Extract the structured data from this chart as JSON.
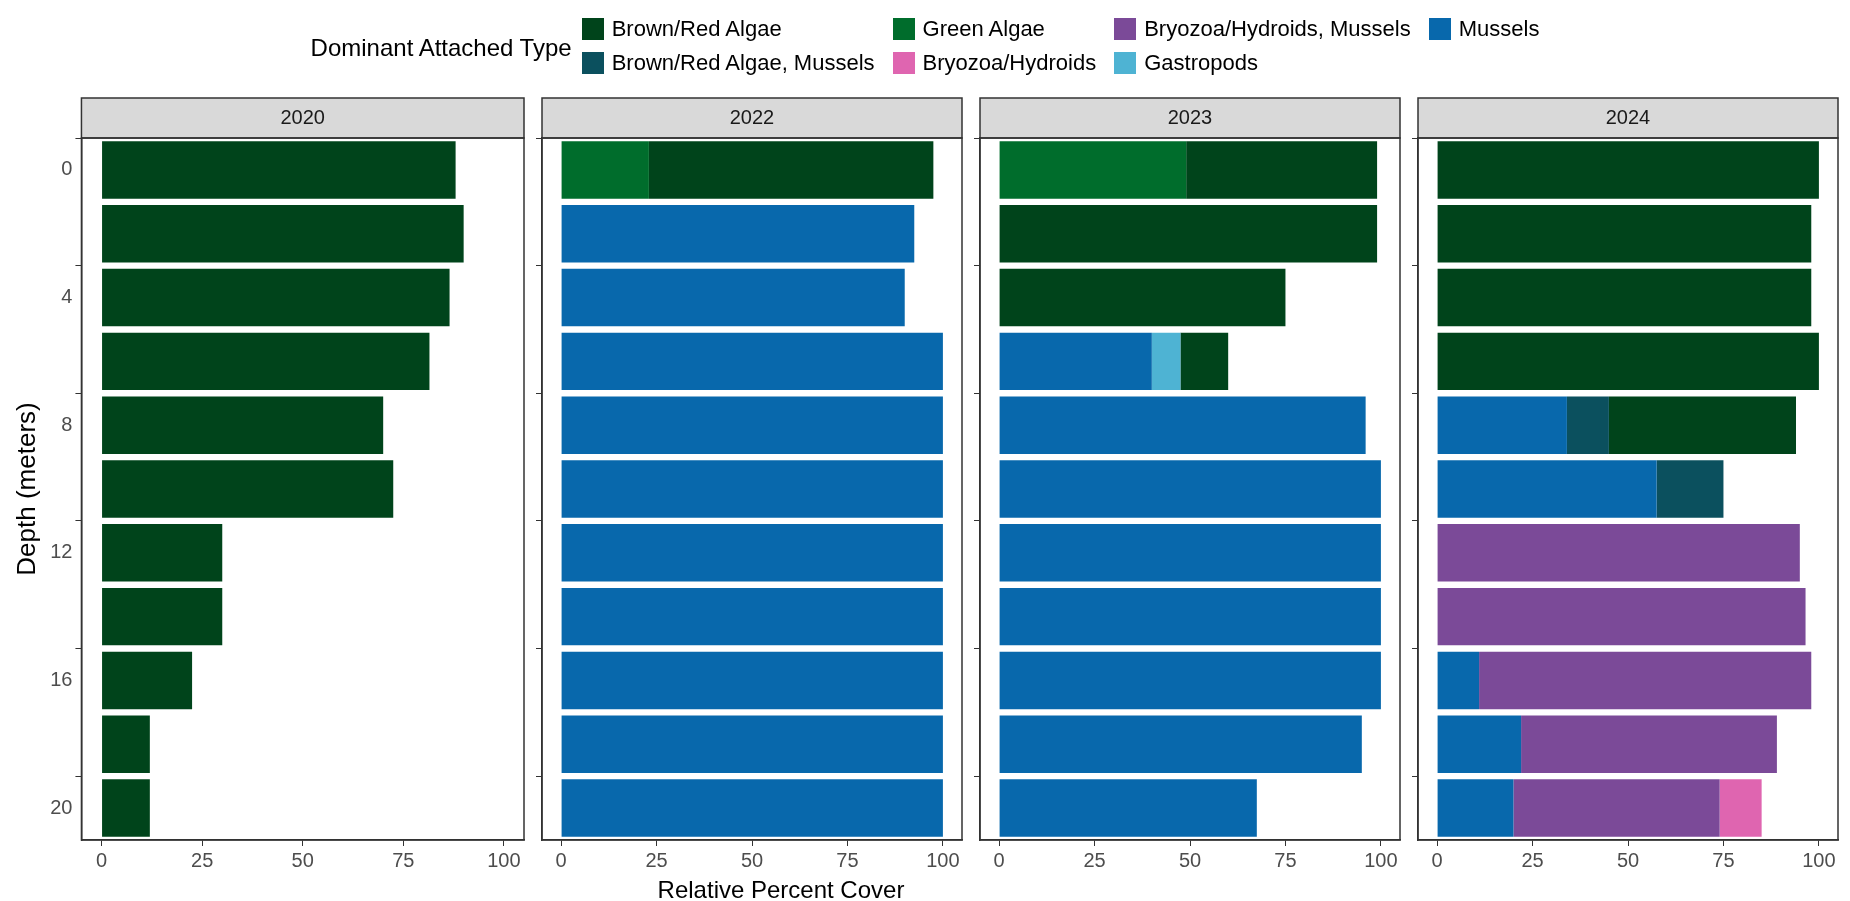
{
  "chart_data": [
    {
      "type": "bar",
      "title": "2020",
      "orientation": "horizontal",
      "stacked": true,
      "categories": [
        "0",
        null,
        "4",
        null,
        "8",
        null,
        "12",
        null,
        "16",
        null,
        "20"
      ],
      "xlim": [
        -5,
        105
      ],
      "xticks": [
        0,
        25,
        50,
        75,
        100
      ],
      "ylabel": "Depth (meters)",
      "legend": "top",
      "legend_title": "Dominant Attached Type",
      "series": [
        {
          "name": "Mussels",
          "color": "#0868ac",
          "values": [
            null,
            null,
            null,
            null,
            null,
            null,
            null,
            null,
            null,
            null,
            null
          ]
        },
        {
          "name": "Gastropods",
          "color": "#4eb3d3",
          "values": [
            null,
            null,
            null,
            null,
            null,
            null,
            null,
            null,
            null,
            null,
            null
          ]
        },
        {
          "name": "Bryozoa/Hydroids, Mussels",
          "color": "#7b4a98",
          "values": [
            null,
            null,
            null,
            null,
            null,
            null,
            null,
            null,
            null,
            null,
            null
          ]
        },
        {
          "name": "Bryozoa/Hydroids",
          "color": "#df65b0",
          "values": [
            null,
            null,
            null,
            null,
            null,
            null,
            null,
            null,
            null,
            null,
            null
          ]
        },
        {
          "name": "Green Algae",
          "color": "#006d2c",
          "values": [
            null,
            null,
            null,
            null,
            null,
            null,
            null,
            null,
            null,
            null,
            null
          ]
        },
        {
          "name": "Brown/Red Algae, Mussels",
          "color": "#0b505e",
          "values": [
            null,
            null,
            null,
            null,
            null,
            null,
            null,
            null,
            null,
            null,
            null
          ]
        },
        {
          "name": "Brown/Red Algae",
          "color": "#00441b",
          "values": [
            88,
            90,
            86.5,
            81.5,
            70,
            72.5,
            30,
            30,
            22.5,
            12,
            12
          ]
        }
      ]
    },
    {
      "type": "bar",
      "title": "2022",
      "orientation": "horizontal",
      "stacked": true,
      "categories": [
        "0",
        null,
        "4",
        null,
        "8",
        null,
        "12",
        null,
        "16",
        null,
        "20"
      ],
      "xlim": [
        -5,
        105
      ],
      "xticks": [
        0,
        25,
        50,
        75,
        100
      ],
      "tick_labels": "x",
      "xlabel": "Relative Percent Cover",
      "series": [
        {
          "color": "#0868ac",
          "values": [
            null,
            92.5,
            90,
            100,
            100,
            100,
            100,
            100,
            100,
            100,
            100
          ]
        },
        {
          "color": "#006d2c",
          "values": [
            23,
            null,
            null,
            null,
            null,
            null,
            null,
            null,
            null,
            null,
            null
          ]
        },
        {
          "color": "#00441b",
          "values": [
            74.5,
            null,
            null,
            null,
            null,
            null,
            null,
            null,
            null,
            null,
            null
          ]
        }
      ]
    },
    {
      "type": "bar",
      "title": "2023",
      "orientation": "horizontal",
      "stacked": true,
      "categories": [
        "0",
        null,
        "4",
        null,
        "8",
        null,
        "12",
        null,
        "16",
        null,
        "20"
      ],
      "xlim": [
        -5,
        105
      ],
      "xticks": [
        0,
        25,
        50,
        75,
        100
      ],
      "tick_labels": "x",
      "series": [
        {
          "color": "#0868ac",
          "values": [
            null,
            null,
            null,
            40,
            96,
            100,
            100,
            100,
            100,
            95,
            67.5
          ]
        },
        {
          "color": "#4eb3d3",
          "values": [
            null,
            null,
            null,
            7.5,
            null,
            null,
            null,
            null,
            null,
            null,
            null
          ]
        },
        {
          "color": "#006d2c",
          "values": [
            49,
            null,
            null,
            null,
            null,
            null,
            null,
            null,
            null,
            null,
            null
          ]
        },
        {
          "color": "#00441b",
          "values": [
            50,
            99,
            75,
            12.5,
            null,
            null,
            null,
            null,
            null,
            null,
            null
          ]
        }
      ]
    },
    {
      "type": "bar",
      "title": "2024",
      "orientation": "horizontal",
      "stacked": true,
      "categories": [
        "0",
        null,
        "4",
        null,
        "8",
        null,
        "12",
        null,
        "16",
        null,
        "20"
      ],
      "xlim": [
        -5,
        105
      ],
      "xticks": [
        0,
        25,
        50,
        75,
        100
      ],
      "tick_labels": "x",
      "series": [
        {
          "color": "#0868ac",
          "values": [
            null,
            null,
            null,
            null,
            34,
            57.5,
            null,
            null,
            11,
            22,
            20
          ]
        },
        {
          "color": "#7b4a98",
          "values": [
            null,
            null,
            null,
            null,
            null,
            null,
            95,
            96.5,
            87,
            67,
            54
          ]
        },
        {
          "color": "#df65b0",
          "values": [
            null,
            null,
            null,
            null,
            null,
            null,
            null,
            null,
            null,
            null,
            11
          ]
        },
        {
          "color": "#0b505e",
          "values": [
            null,
            null,
            null,
            null,
            11,
            17.5,
            null,
            null,
            null,
            null,
            null
          ]
        },
        {
          "color": "#00441b",
          "values": [
            100,
            98,
            98,
            100,
            49,
            null,
            null,
            null,
            null,
            null,
            null
          ]
        }
      ]
    }
  ]
}
